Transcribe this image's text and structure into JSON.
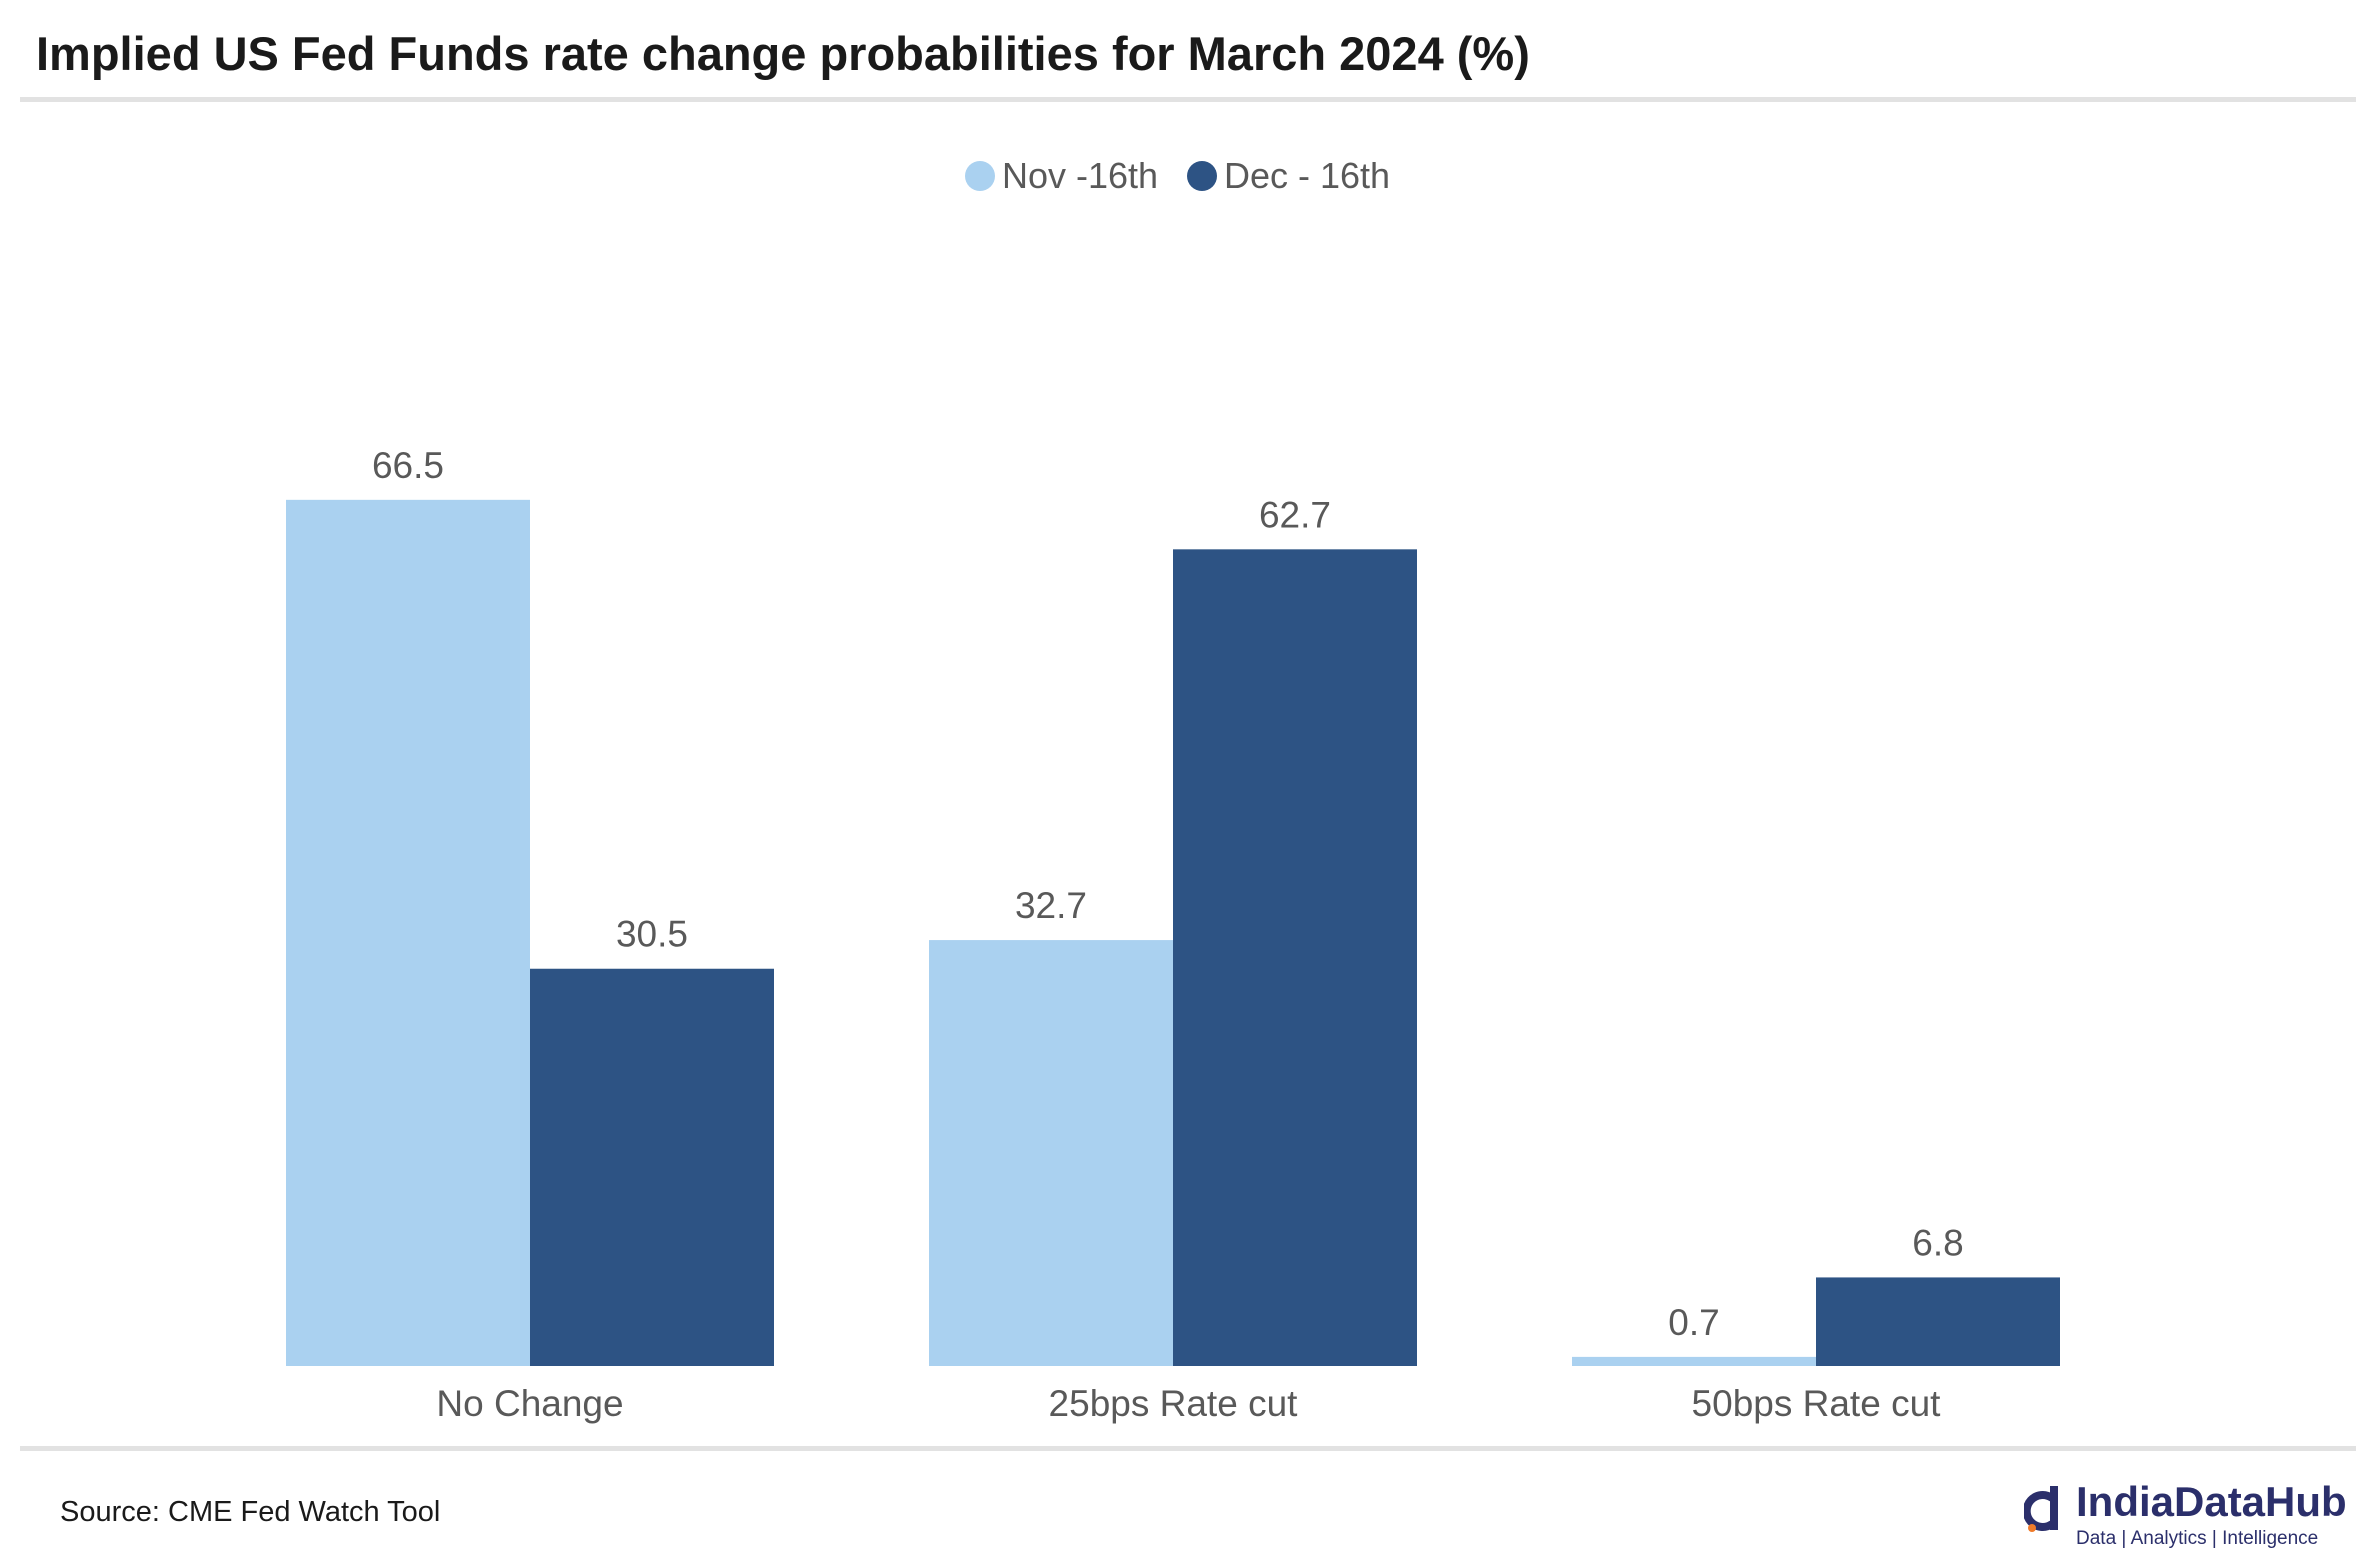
{
  "title": "Implied US Fed Funds rate change probabilities for March 2024 (%)",
  "source": "Source: CME Fed Watch Tool",
  "logo": {
    "name": "IndiaDataHub",
    "tagline": "Data | Analytics | Intelligence"
  },
  "colors": {
    "series_1": "#aad1f0",
    "series_2": "#2d5384",
    "text": "#595959",
    "rule": "#e2e2e2"
  },
  "chart_data": {
    "type": "bar",
    "title": "Implied US Fed Funds rate change probabilities for March 2024 (%)",
    "categories": [
      "No Change",
      "25bps Rate cut",
      "50bps Rate cut"
    ],
    "series": [
      {
        "name": "Nov -16th",
        "values": [
          66.5,
          32.7,
          0.7
        ]
      },
      {
        "name": "Dec - 16th",
        "values": [
          30.5,
          62.7,
          6.8
        ]
      }
    ],
    "ylim": [
      0,
      80
    ],
    "grid": false,
    "legend": "top-center",
    "data_labels": true
  }
}
